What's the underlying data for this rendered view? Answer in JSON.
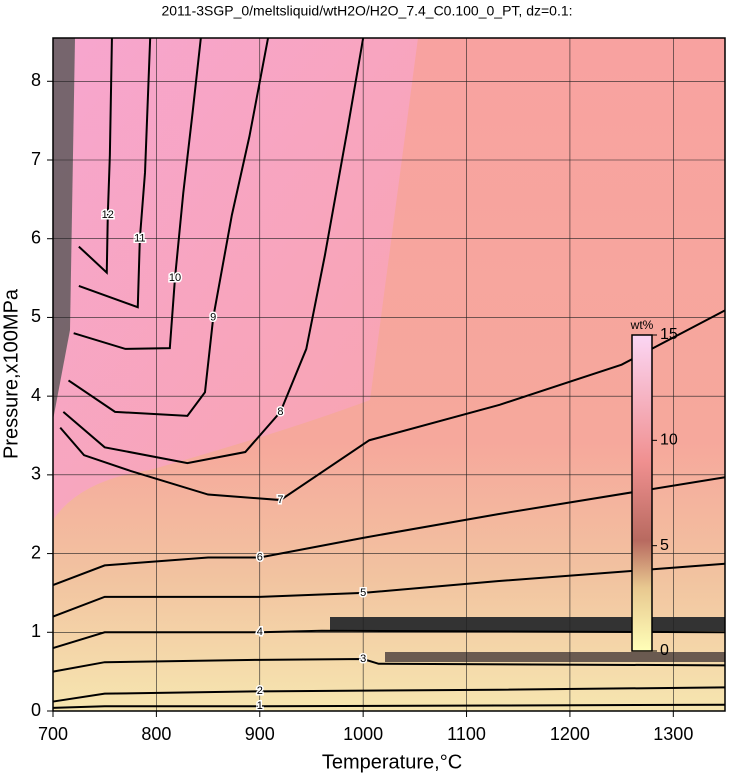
{
  "chart_data": {
    "type": "contour",
    "title": "2011-3SGP_0/meltsliquid/wtH2O/H2O_7.4_C0.100_0_PT, dz=0.1:",
    "xlabel": "Temperature,°C",
    "ylabel": "Pressure,x100MPa",
    "xlim": [
      700,
      1350
    ],
    "ylim": [
      0,
      8.55
    ],
    "xticks": [
      700,
      800,
      900,
      1000,
      1100,
      1200,
      1300
    ],
    "yticks": [
      0,
      1,
      2,
      3,
      4,
      5,
      6,
      7,
      8
    ],
    "grid": true,
    "color": "#000000",
    "series": [
      {
        "name": "1",
        "x": [
          700,
          750,
          900,
          1130,
          1350
        ],
        "values": [
          0.04,
          0.06,
          0.06,
          0.07,
          0.08
        ]
      },
      {
        "name": "2",
        "x": [
          700,
          750,
          900,
          1130,
          1350
        ],
        "values": [
          0.12,
          0.22,
          0.25,
          0.27,
          0.3
        ]
      },
      {
        "name": "3",
        "x": [
          700,
          750,
          900,
          1000,
          1015,
          1350
        ],
        "values": [
          0.5,
          0.62,
          0.65,
          0.66,
          0.6,
          0.58
        ]
      },
      {
        "name": "4",
        "x": [
          700,
          750,
          900,
          960,
          1350
        ],
        "values": [
          0.8,
          1.0,
          1.0,
          1.02,
          1.0
        ]
      },
      {
        "name": "5",
        "x": [
          700,
          750,
          900,
          1000,
          1130,
          1350
        ],
        "values": [
          1.2,
          1.45,
          1.45,
          1.5,
          1.65,
          1.87
        ]
      },
      {
        "name": "6",
        "x": [
          700,
          750,
          850,
          900,
          1000,
          1130,
          1350
        ],
        "values": [
          1.6,
          1.85,
          1.95,
          1.95,
          2.2,
          2.5,
          2.97
        ]
      },
      {
        "name": "7",
        "x": [
          707,
          730,
          775,
          850,
          920,
          1006,
          1132,
          1250,
          1350
        ],
        "values": [
          3.6,
          3.25,
          3.05,
          2.75,
          2.68,
          3.44,
          3.89,
          4.4,
          5.09
        ]
      },
      {
        "name": "8",
        "x": [
          710,
          750,
          830,
          886,
          920,
          945,
          963,
          985,
          1000
        ],
        "values": [
          3.8,
          3.35,
          3.15,
          3.29,
          3.8,
          4.6,
          5.79,
          7.4,
          8.55
        ]
      },
      {
        "name": "9",
        "x": [
          715,
          760,
          830,
          847,
          855,
          873,
          890,
          908
        ],
        "values": [
          4.2,
          3.8,
          3.75,
          4.05,
          5.0,
          6.3,
          7.3,
          8.55
        ]
      },
      {
        "name": "10",
        "x": [
          720,
          770,
          813,
          818,
          826,
          835,
          843
        ],
        "values": [
          4.8,
          4.6,
          4.61,
          5.5,
          6.58,
          7.6,
          8.55
        ]
      },
      {
        "name": "11",
        "x": [
          725,
          782,
          784,
          789,
          794
        ],
        "values": [
          5.4,
          5.13,
          6.0,
          6.84,
          8.55
        ]
      },
      {
        "name": "12",
        "x": [
          725,
          752,
          753,
          755,
          757
        ],
        "values": [
          5.9,
          5.57,
          6.3,
          7.06,
          8.55
        ]
      }
    ],
    "colorbar": {
      "label": "wt%",
      "lim": [
        0,
        15
      ],
      "ticks": [
        0,
        5,
        10,
        15
      ]
    }
  }
}
